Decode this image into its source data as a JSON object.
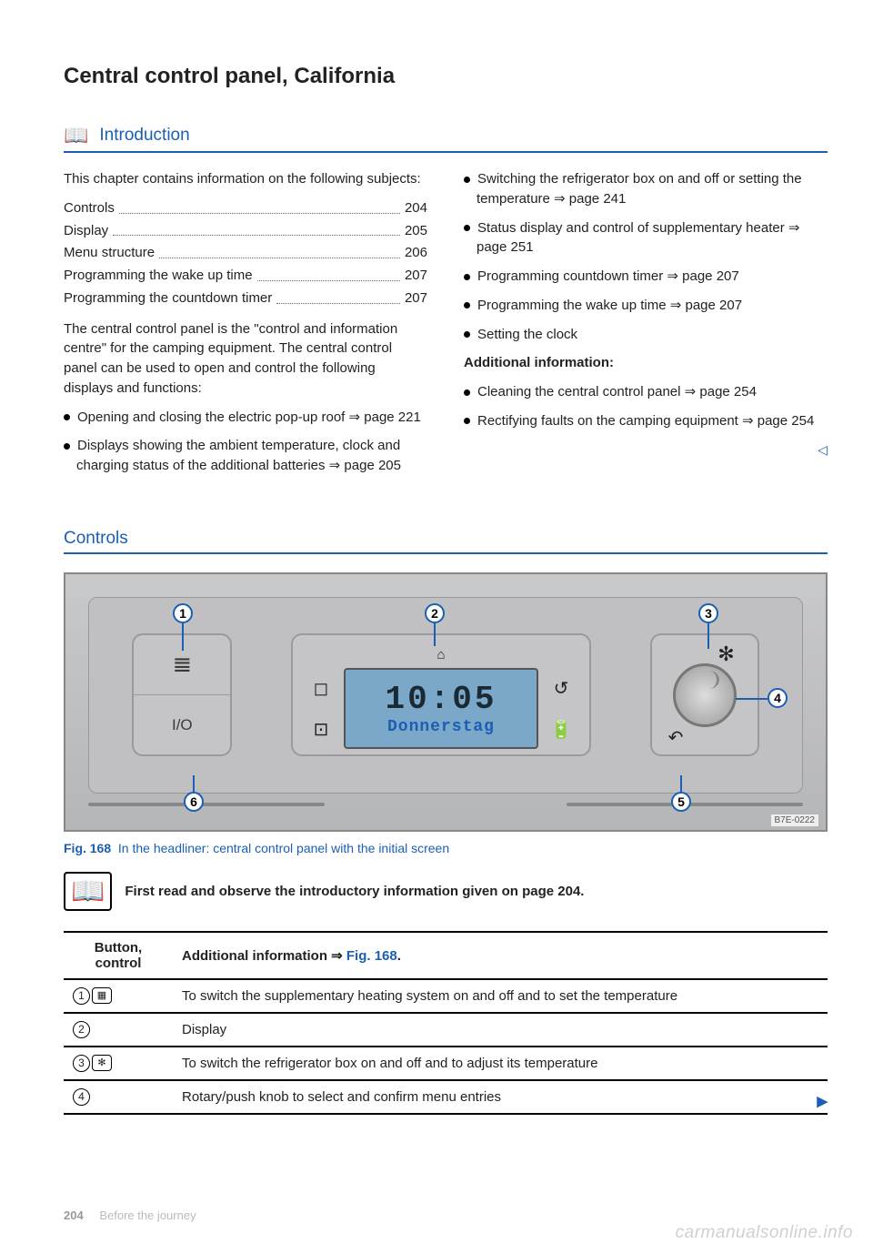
{
  "page_title": "Central control panel, California",
  "intro_heading": "Introduction",
  "intro_lead": "This chapter contains information on the following subjects:",
  "toc": [
    {
      "label": "Controls",
      "page": "204"
    },
    {
      "label": "Display",
      "page": "205"
    },
    {
      "label": "Menu structure",
      "page": "206"
    },
    {
      "label": "Programming the wake up time",
      "page": "207"
    },
    {
      "label": "Programming the countdown timer",
      "page": "207"
    }
  ],
  "intro_para": "The central control panel is the \"control and information centre\" for the camping equipment. The central control panel can be used to open and control the following displays and functions:",
  "left_bullets": [
    "Opening and closing the electric pop-up roof ⇒ page 221",
    "Displays showing the ambient temperature, clock and charging status of the additional batteries ⇒ page 205"
  ],
  "right_bullets": [
    "Switching the refrigerator box on and off or setting the temperature ⇒ page 241",
    "Status display and control of supplementary heater ⇒ page 251",
    "Programming countdown timer ⇒ page 207",
    "Programming the wake up time ⇒ page 207",
    "Setting the clock"
  ],
  "addl_heading": "Additional information:",
  "addl_bullets": [
    "Cleaning the central control panel ⇒ page 254",
    "Rectifying faults on the camping equipment ⇒ page 254"
  ],
  "controls_heading": "Controls",
  "figure": {
    "io_label": "I/O",
    "time": "10:05",
    "day": "Donnerstag",
    "img_code": "B7E-0222",
    "callouts": {
      "c1": "1",
      "c2": "2",
      "c3": "3",
      "c4": "4",
      "c5": "5",
      "c6": "6"
    }
  },
  "fig_caption_label": "Fig. 168",
  "fig_caption_text": "In the headliner: central control panel with the initial screen",
  "observe_text": "First read and observe the introductory information given on page 204.",
  "table": {
    "head_col1": "Button, control",
    "head_col2_prefix": "Additional information ⇒",
    "head_col2_figref": "Fig. 168",
    "rows": [
      {
        "btns": [
          {
            "type": "circ",
            "v": "1"
          },
          {
            "type": "sq",
            "v": "▦"
          }
        ],
        "text": "To switch the supplementary heating system on and off and to set the temperature"
      },
      {
        "btns": [
          {
            "type": "circ",
            "v": "2"
          }
        ],
        "text": "Display"
      },
      {
        "btns": [
          {
            "type": "circ",
            "v": "3"
          },
          {
            "type": "sq",
            "v": "✻"
          }
        ],
        "text": "To switch the refrigerator box on and off and to adjust its temperature"
      },
      {
        "btns": [
          {
            "type": "circ",
            "v": "4"
          }
        ],
        "text": "Rotary/push knob to select and confirm menu entries"
      }
    ]
  },
  "footer_page": "204",
  "footer_text": "Before the journey",
  "watermark": "carmanualsonline.info",
  "colors": {
    "blue": "#1a5fb4"
  }
}
